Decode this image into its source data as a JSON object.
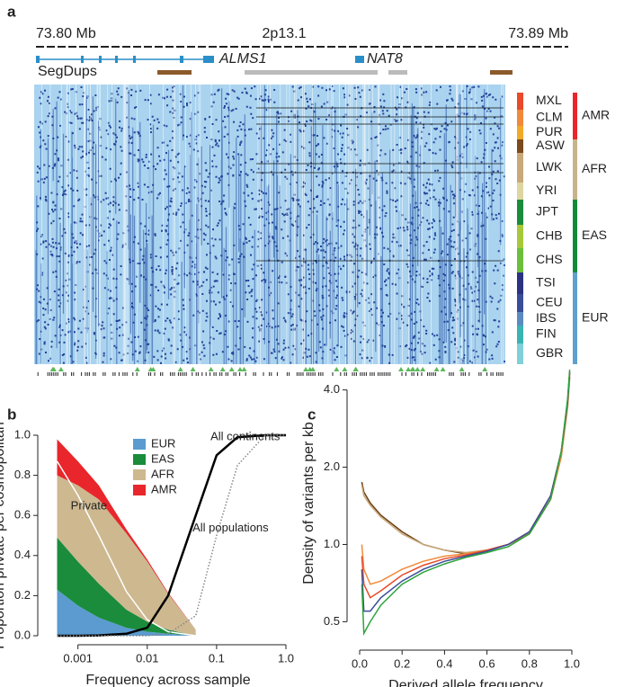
{
  "panel_a": {
    "label": "a",
    "positions": [
      "73.80 Mb",
      "2p13.1",
      "73.89 Mb"
    ],
    "genes": [
      "ALMS1",
      "NAT8"
    ],
    "segdups_label": "SegDups",
    "populations": [
      {
        "name": "MXL",
        "color": "#e84a2a"
      },
      {
        "name": "CLM",
        "color": "#f08a3a"
      },
      {
        "name": "PUR",
        "color": "#f2a92a"
      },
      {
        "name": "ASW",
        "color": "#7b4a1e"
      },
      {
        "name": "LWK",
        "color": "#c9a97a"
      },
      {
        "name": "YRI",
        "color": "#ddd6a0"
      },
      {
        "name": "JPT",
        "color": "#1a8c3c"
      },
      {
        "name": "CHB",
        "color": "#a8c83c"
      },
      {
        "name": "CHS",
        "color": "#6cbf3c"
      },
      {
        "name": "TSI",
        "color": "#2b3282"
      },
      {
        "name": "CEU",
        "color": "#3a4d9a"
      },
      {
        "name": "IBS",
        "color": "#5b8bc0"
      },
      {
        "name": "FIN",
        "color": "#3ab3b3"
      },
      {
        "name": "GBR",
        "color": "#7fd0d8"
      }
    ],
    "continents": [
      {
        "name": "AMR",
        "color": "#e8262b"
      },
      {
        "name": "AFR",
        "color": "#c8b48a"
      },
      {
        "name": "EAS",
        "color": "#138a3a"
      },
      {
        "name": "EUR",
        "color": "#5fa0cc"
      }
    ]
  },
  "chart_data": [
    {
      "type": "area",
      "panel_label": "b",
      "xlabel": "Frequency across sample",
      "ylabel": "Proportion private per cosmopolitan",
      "xscale": "log",
      "x": [
        0.0005,
        0.001,
        0.002,
        0.005,
        0.01,
        0.02,
        0.05,
        0.1,
        0.2,
        0.5,
        1.0
      ],
      "xlim": [
        0.0004,
        1.0
      ],
      "xticks": [
        0.001,
        0.01,
        0.1,
        {
          "value": 1,
          "label": "1.0"
        }
      ],
      "ylim": [
        0,
        1
      ],
      "yticks": [
        {
          "value": 0,
          "label": "0.0"
        },
        0.2,
        0.4,
        0.6,
        0.8,
        {
          "value": 1,
          "label": "1.0"
        }
      ],
      "series": [
        {
          "name": "EUR",
          "color": "#5b9bd0",
          "values": [
            0.23,
            0.15,
            0.09,
            0.04,
            0.02,
            0.01,
            0,
            null,
            null,
            null,
            null
          ]
        },
        {
          "name": "EAS",
          "color": "#1a8c3c",
          "values": [
            0.26,
            0.22,
            0.17,
            0.09,
            0.05,
            0.02,
            0,
            null,
            null,
            null,
            null
          ]
        },
        {
          "name": "AFR",
          "color": "#cdb890",
          "values": [
            0.31,
            0.38,
            0.42,
            0.38,
            0.3,
            0.18,
            0.03,
            null,
            null,
            null,
            null
          ]
        },
        {
          "name": "AMR",
          "color": "#e8262b",
          "values": [
            0.18,
            0.12,
            0.07,
            0.02,
            0.01,
            0.005,
            0,
            null,
            null,
            null,
            null
          ]
        }
      ],
      "curves": [
        {
          "name": "Private",
          "color": "#ffffff",
          "values": [
            0.87,
            0.7,
            0.5,
            0.22,
            0.08,
            0.02,
            0,
            null,
            null,
            null,
            null
          ]
        },
        {
          "name": "All continents",
          "color": "#000000",
          "values": [
            0,
            0,
            0.002,
            0.01,
            0.04,
            0.2,
            0.6,
            0.9,
            0.99,
            1.0,
            1.0
          ]
        },
        {
          "name": "All populations",
          "color": "#888888",
          "dash": true,
          "values": [
            0,
            0,
            0,
            0,
            0,
            0.01,
            0.1,
            0.5,
            0.85,
            1.0,
            1.0
          ]
        }
      ]
    },
    {
      "type": "line",
      "panel_label": "c",
      "xlabel": "Derived allele frequency",
      "ylabel": "Density of variants per kb",
      "yscale": "log",
      "x": [
        0.01,
        0.02,
        0.05,
        0.1,
        0.2,
        0.3,
        0.4,
        0.5,
        0.6,
        0.7,
        0.8,
        0.9,
        0.95,
        0.98,
        0.99
      ],
      "xlim": [
        0,
        1
      ],
      "xticks": [
        {
          "value": 0,
          "label": "0.0"
        },
        0.2,
        0.4,
        0.6,
        0.8,
        {
          "value": 1,
          "label": "1.0"
        }
      ],
      "ylim": [
        0.42,
        5.0
      ],
      "yticks": [
        0.5,
        {
          "value": 1,
          "label": "1.0"
        },
        {
          "value": 2,
          "label": "2.0"
        },
        {
          "value": 4,
          "label": "4.0"
        }
      ],
      "series": [
        {
          "color": "#6b3e14",
          "values": [
            1.75,
            1.6,
            1.45,
            1.3,
            1.12,
            1.0,
            0.95,
            0.92,
            0.95,
            1.0,
            1.1,
            1.5,
            2.2,
            3.5,
            4.5
          ]
        },
        {
          "color": "#c9a97a",
          "values": [
            1.7,
            1.55,
            1.42,
            1.28,
            1.1,
            1.0,
            0.95,
            0.93,
            0.95,
            1.0,
            1.1,
            1.5,
            2.2,
            3.4,
            4.4
          ]
        },
        {
          "color": "#f08a3a",
          "values": [
            1.0,
            0.8,
            0.7,
            0.72,
            0.8,
            0.86,
            0.9,
            0.92,
            0.95,
            1.0,
            1.1,
            1.5,
            2.2,
            3.5,
            4.6
          ]
        },
        {
          "color": "#e84a2a",
          "values": [
            0.9,
            0.7,
            0.62,
            0.66,
            0.76,
            0.83,
            0.88,
            0.91,
            0.95,
            1.0,
            1.12,
            1.55,
            2.3,
            3.6,
            4.7
          ]
        },
        {
          "color": "#3a4d9a",
          "values": [
            0.8,
            0.55,
            0.55,
            0.62,
            0.72,
            0.8,
            0.86,
            0.9,
            0.94,
            1.0,
            1.12,
            1.55,
            2.3,
            3.6,
            4.7
          ]
        },
        {
          "color": "#2ea43c",
          "values": [
            0.7,
            0.45,
            0.5,
            0.58,
            0.7,
            0.78,
            0.84,
            0.89,
            0.93,
            0.98,
            1.1,
            1.5,
            2.3,
            3.7,
            4.8
          ]
        }
      ]
    }
  ]
}
